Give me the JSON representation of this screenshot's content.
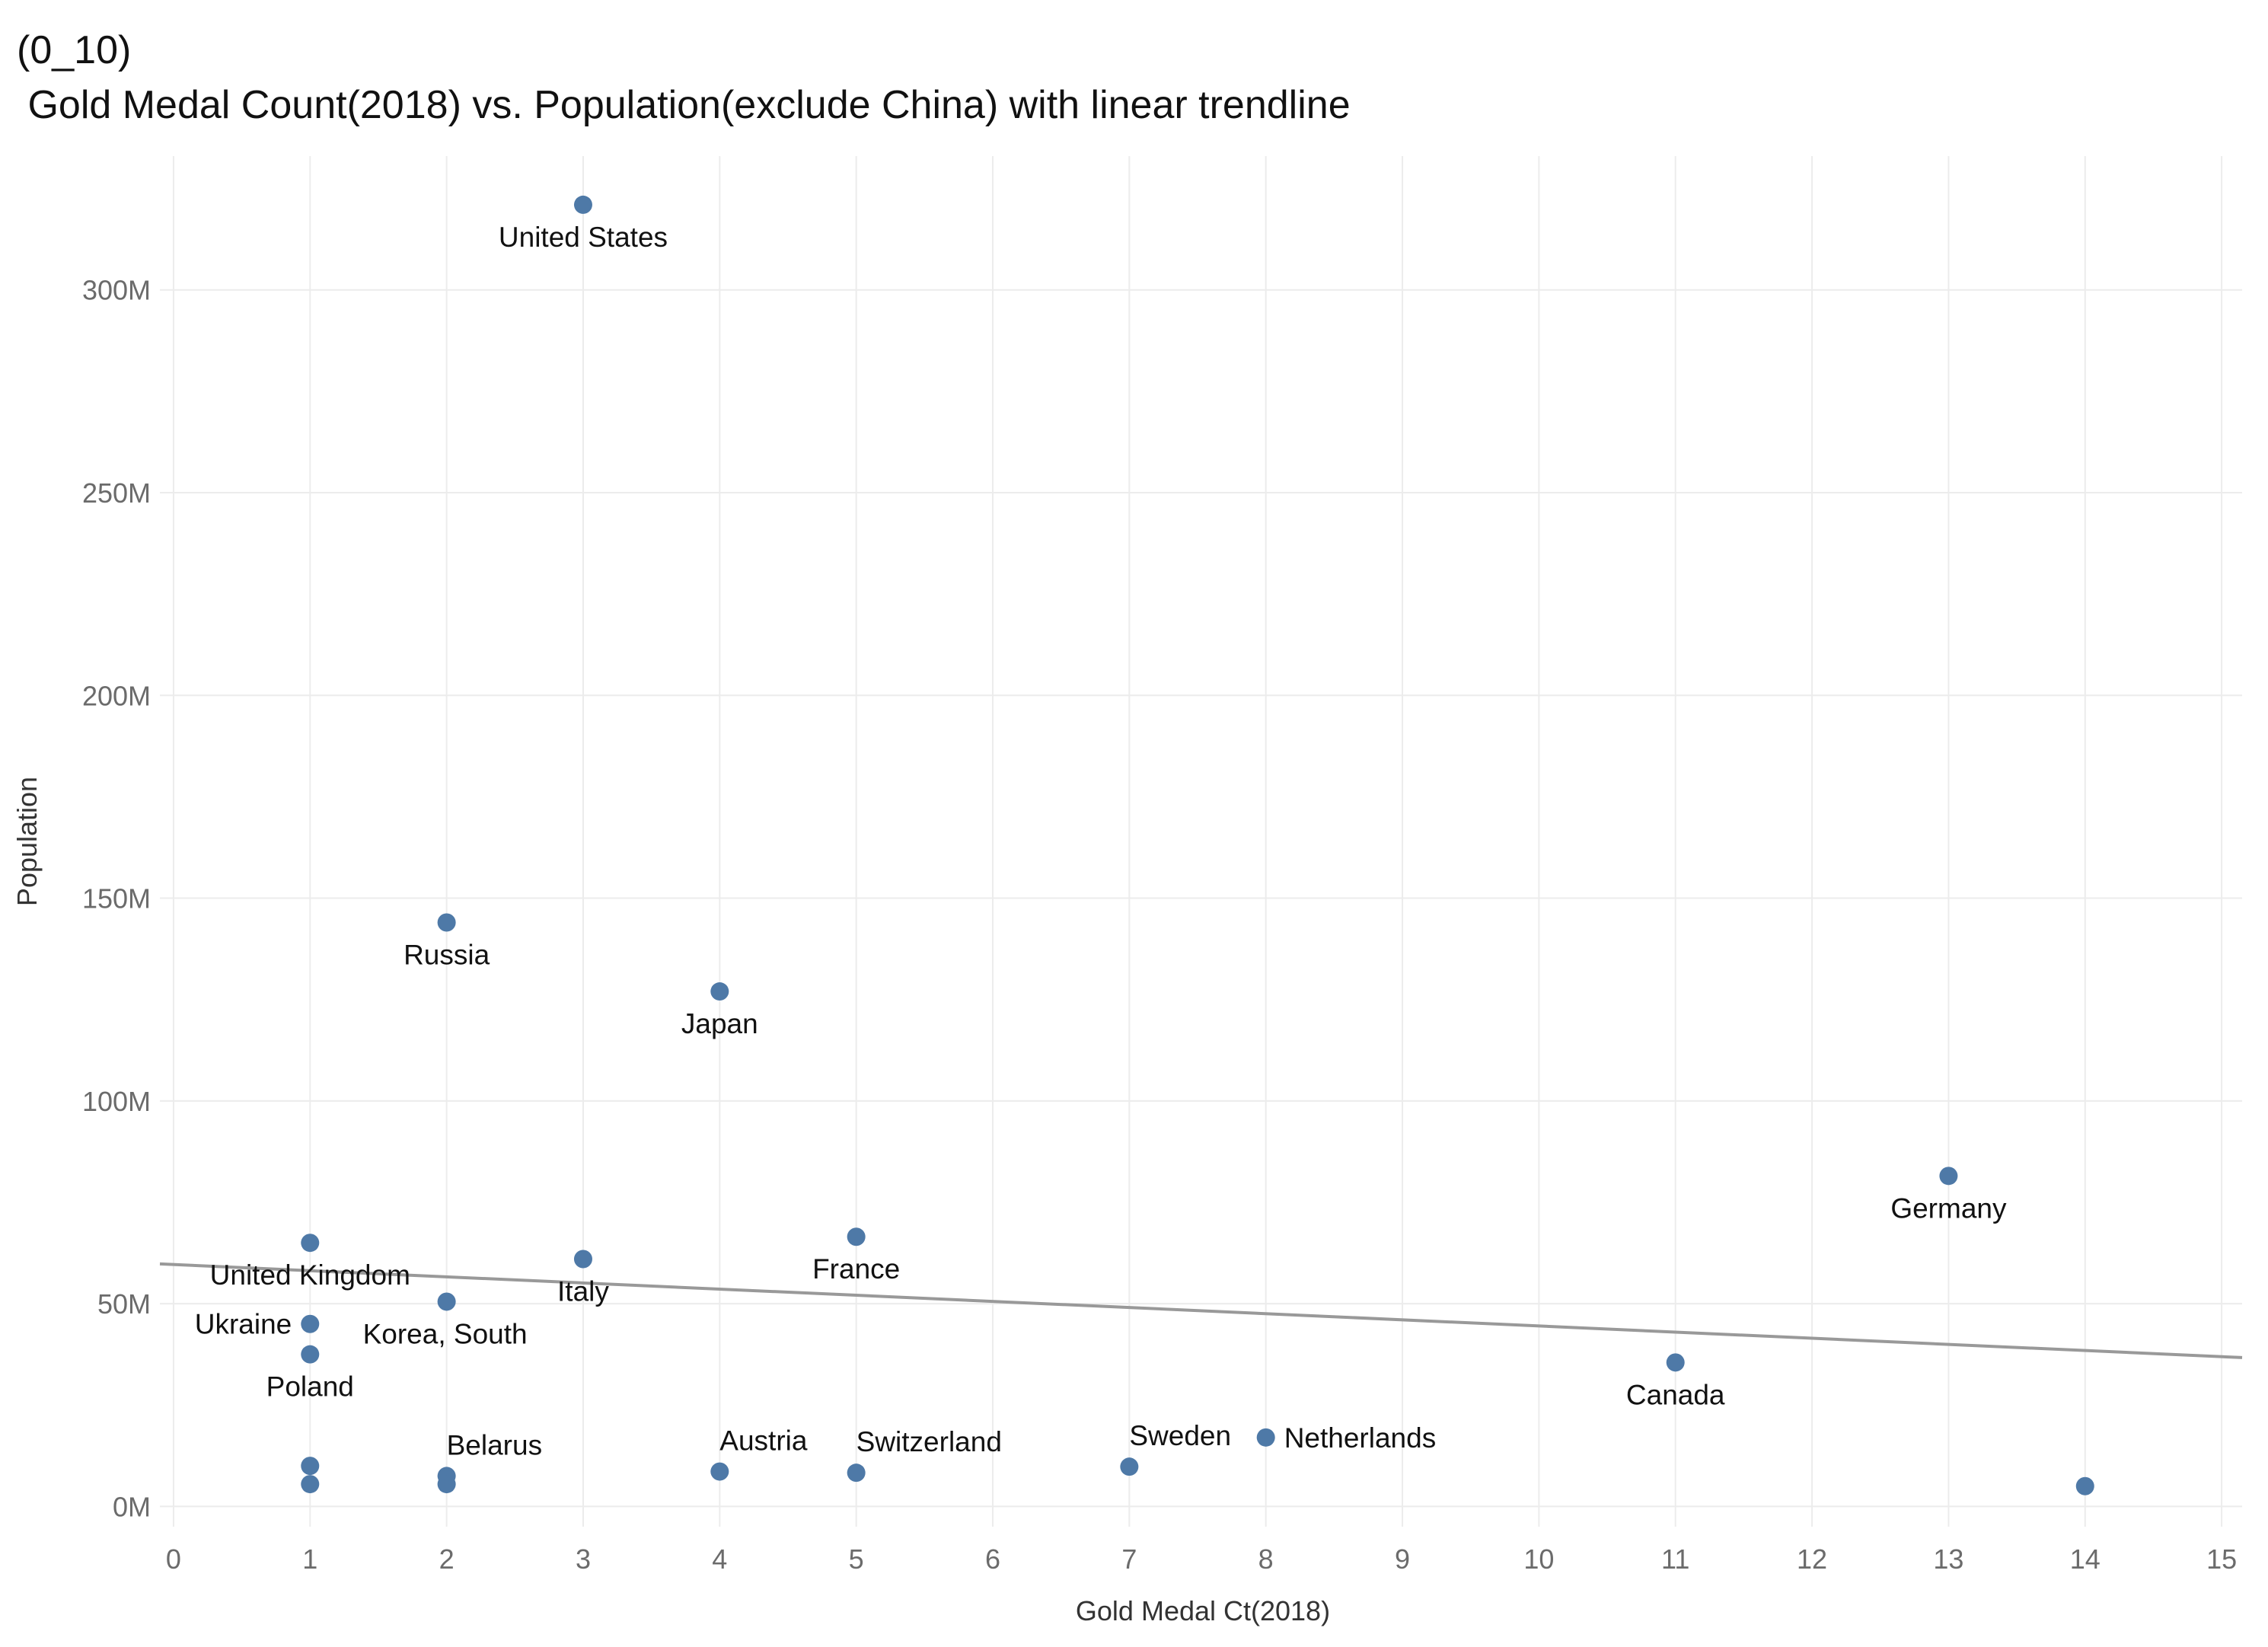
{
  "chart_data": {
    "type": "scatter",
    "title_line1": "(0_10)",
    "title_line2": " Gold Medal Count(2018) vs. Population(exclude China) with linear trendline",
    "xlabel": "Gold Medal Ct(2018)",
    "ylabel": "Population",
    "xlim": [
      -0.1,
      15.15
    ],
    "ylim": [
      -5000000,
      333000000
    ],
    "x_ticks": [
      0,
      1,
      2,
      3,
      4,
      5,
      6,
      7,
      8,
      9,
      10,
      11,
      12,
      13,
      14,
      15
    ],
    "y_ticks": [
      {
        "value": 0,
        "label": "0M"
      },
      {
        "value": 50000000,
        "label": "50M"
      },
      {
        "value": 100000000,
        "label": "100M"
      },
      {
        "value": 150000000,
        "label": "150M"
      },
      {
        "value": 200000000,
        "label": "200M"
      },
      {
        "value": 250000000,
        "label": "250M"
      },
      {
        "value": 300000000,
        "label": "300M"
      }
    ],
    "grid": true,
    "marker_color": "#4e79a7",
    "trendline": {
      "color": "#999999",
      "x": [
        -0.1,
        15.15
      ],
      "y": [
        59800000,
        36700000
      ]
    },
    "points": [
      {
        "label": "United States",
        "x": 3,
        "y": 321000000,
        "label_pos": "below"
      },
      {
        "label": "Russia",
        "x": 2,
        "y": 144000000,
        "label_pos": "below"
      },
      {
        "label": "Japan",
        "x": 4,
        "y": 127000000,
        "label_pos": "below"
      },
      {
        "label": "Germany",
        "x": 13,
        "y": 81500000,
        "label_pos": "below"
      },
      {
        "label": "United Kingdom",
        "x": 1,
        "y": 65000000,
        "label_pos": "below"
      },
      {
        "label": "France",
        "x": 5,
        "y": 66500000,
        "label_pos": "below"
      },
      {
        "label": "Italy",
        "x": 3,
        "y": 61000000,
        "label_pos": "below"
      },
      {
        "label": "Korea, South",
        "x": 2,
        "y": 50500000,
        "label_pos": "below-right"
      },
      {
        "label": "Ukraine",
        "x": 1,
        "y": 45000000,
        "label_pos": "left"
      },
      {
        "label": "Poland",
        "x": 1,
        "y": 37500000,
        "label_pos": "below"
      },
      {
        "label": "Canada",
        "x": 11,
        "y": 35500000,
        "label_pos": "below"
      },
      {
        "label": "Belarus",
        "x": 2,
        "y": 7500000,
        "label_pos": "above-right"
      },
      {
        "label": "",
        "x": 2,
        "y": 5500000,
        "label_pos": "none"
      },
      {
        "label": "Austria",
        "x": 4,
        "y": 8600000,
        "label_pos": "above-right"
      },
      {
        "label": "Switzerland",
        "x": 5,
        "y": 8300000,
        "label_pos": "above-right"
      },
      {
        "label": "Sweden",
        "x": 7,
        "y": 9800000,
        "label_pos": "above-right"
      },
      {
        "label": "Netherlands",
        "x": 8,
        "y": 17000000,
        "label_pos": "right"
      },
      {
        "label": "",
        "x": 1,
        "y": 10000000,
        "label_pos": "none"
      },
      {
        "label": "",
        "x": 1,
        "y": 5500000,
        "label_pos": "none"
      },
      {
        "label": "",
        "x": 14,
        "y": 5000000,
        "label_pos": "none"
      }
    ]
  }
}
